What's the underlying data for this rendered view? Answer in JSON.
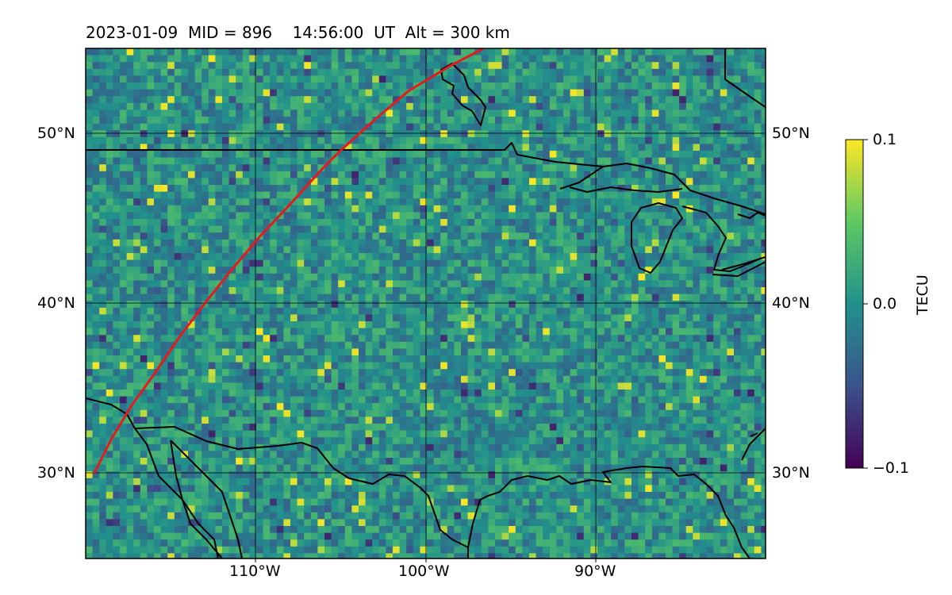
{
  "title": "2023-01-09  MID = 896    14:56:00  UT  Alt = 300 km",
  "map": {
    "lat_labels": [
      "50°N",
      "40°N",
      "30°N"
    ],
    "lon_labels": [
      "110°W",
      "100°W",
      "90°W"
    ],
    "extent": {
      "lon_min": -120,
      "lon_max": -80,
      "lat_min": 25,
      "lat_max": 55
    },
    "track_color": "#e41a1c",
    "track_points": [
      [
        -119.5,
        30.0
      ],
      [
        -118.5,
        32.0
      ],
      [
        -117.3,
        34.0
      ],
      [
        -116.0,
        35.8
      ],
      [
        -114.5,
        38.0
      ],
      [
        -113.0,
        40.0
      ],
      [
        -111.4,
        42.0
      ],
      [
        -109.7,
        44.0
      ],
      [
        -108.0,
        45.8
      ],
      [
        -106.0,
        48.0
      ],
      [
        -105.0,
        49.0
      ],
      [
        -103.0,
        50.8
      ],
      [
        -101.0,
        52.5
      ],
      [
        -98.5,
        54.0
      ],
      [
        -96.6,
        55.0
      ]
    ],
    "coastline_color": "#000000",
    "gridline_color": "#000000"
  },
  "colorbar": {
    "label": "TECU",
    "max_label": "0.1",
    "mid_label": "0.0",
    "min_label": "−0.1",
    "vmin": -0.1,
    "vmax": 0.1,
    "colormap": "viridis",
    "colors": [
      "#440154",
      "#3b528b",
      "#21918c",
      "#5ec962",
      "#fde725"
    ]
  }
}
